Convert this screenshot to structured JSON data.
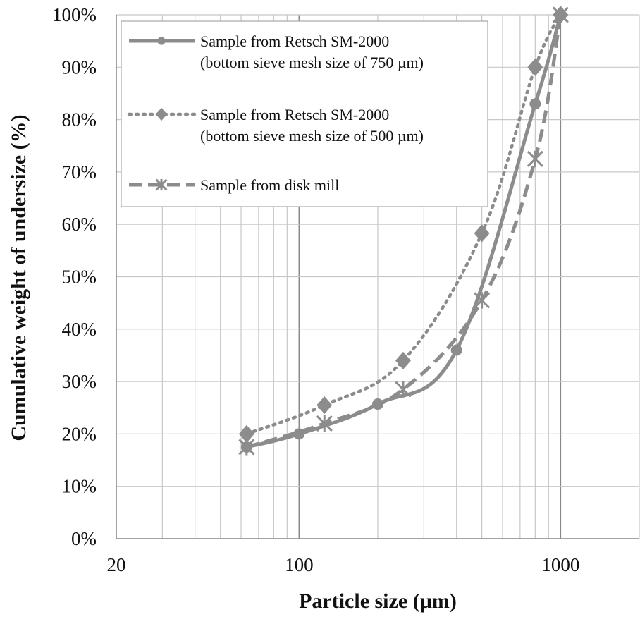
{
  "chart_data": {
    "type": "line",
    "x_scale": "log",
    "xlabel": "Particle size (µm)",
    "ylabel": "Cumulative weight of undersize (%)",
    "xlim": [
      20,
      2000
    ],
    "ylim": [
      0,
      100
    ],
    "x_tick_labels": [
      {
        "value": 20,
        "label": "20"
      },
      {
        "value": 100,
        "label": "100"
      },
      {
        "value": 1000,
        "label": "1000"
      }
    ],
    "y_tick_labels": [
      {
        "value": 0,
        "label": "0%"
      },
      {
        "value": 10,
        "label": "10%"
      },
      {
        "value": 20,
        "label": "20%"
      },
      {
        "value": 30,
        "label": "30%"
      },
      {
        "value": 40,
        "label": "40%"
      },
      {
        "value": 50,
        "label": "50%"
      },
      {
        "value": 60,
        "label": "60%"
      },
      {
        "value": 70,
        "label": "70%"
      },
      {
        "value": 80,
        "label": "80%"
      },
      {
        "value": 90,
        "label": "90%"
      },
      {
        "value": 100,
        "label": "100%"
      }
    ],
    "grid": true,
    "legend_position": "top-left",
    "series": [
      {
        "name_lines": [
          "Sample from Retsch SM-2000",
          "(bottom sieve mesh size of 750 µm)"
        ],
        "line_style": "solid",
        "marker": "circle",
        "color": "#8c8c8c",
        "x": [
          63,
          100,
          200,
          400,
          800,
          1000
        ],
        "y": [
          17.5,
          20,
          25.7,
          36,
          83,
          100
        ]
      },
      {
        "name_lines": [
          "Sample from Retsch SM-2000",
          "(bottom sieve mesh size of 500 µm)"
        ],
        "line_style": "dotted",
        "marker": "diamond",
        "color": "#8c8c8c",
        "x": [
          63,
          125,
          250,
          500,
          800,
          1000
        ],
        "y": [
          20,
          25.5,
          34,
          58.3,
          90,
          100
        ]
      },
      {
        "name_lines": [
          "Sample from disk mill"
        ],
        "line_style": "dashed",
        "marker": "star",
        "color": "#8c8c8c",
        "x": [
          63,
          125,
          250,
          500,
          800,
          1000
        ],
        "y": [
          17.5,
          22,
          28.5,
          45.5,
          72.5,
          100
        ]
      }
    ]
  }
}
